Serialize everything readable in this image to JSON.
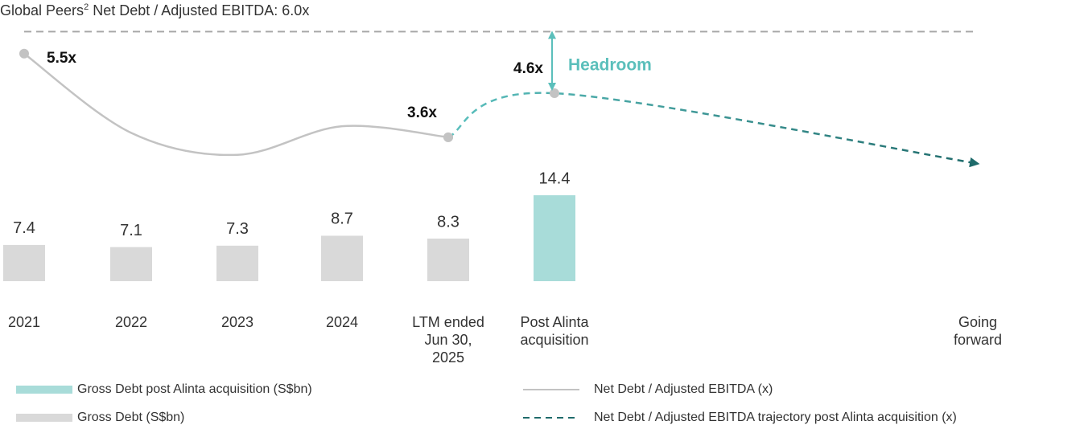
{
  "chart_data": {
    "type": "bar",
    "categories": [
      "2021",
      "2022",
      "2023",
      "2024",
      "LTM ended Jun 30, 2025",
      "Post Alinta acquisition",
      "Going forward"
    ],
    "ylim": [
      2.3,
      35
    ],
    "y2lim": [
      0,
      6.5
    ],
    "series": [
      {
        "name": "Gross Debt (S$bn)",
        "type": "bar",
        "color": "#d9d9d9",
        "values": [
          7.4,
          7.1,
          7.3,
          8.7,
          8.3,
          null,
          null
        ]
      },
      {
        "name": "Gross Debt post Alinta acquisition (S$bn)",
        "type": "bar",
        "color": "#a8dcd9",
        "values": [
          null,
          null,
          null,
          null,
          null,
          14.4,
          null
        ]
      },
      {
        "name": "Net Debt / Adjusted EBITDA (x)",
        "type": "line",
        "axis": "y2",
        "color": "#c3c3c3",
        "style": "solid",
        "values": [
          5.5,
          3.7,
          3.2,
          3.85,
          3.6,
          null,
          null
        ],
        "value_labels": [
          "5.5x",
          null,
          null,
          null,
          "3.6x",
          null,
          null
        ]
      },
      {
        "name": "Net Debt / Adjusted EBITDA trajectory post Alinta acquisition (x)",
        "type": "line",
        "axis": "y2",
        "color": "#5bc0be",
        "color_end": "#1f6b6b",
        "style": "dashed",
        "values": [
          null,
          null,
          null,
          null,
          3.6,
          4.6,
          3.0
        ],
        "value_labels": [
          null,
          null,
          null,
          null,
          null,
          "4.6x",
          null
        ]
      }
    ],
    "reference_line": {
      "value": 6.0,
      "label": "Global Peers",
      "label_superscript": "2",
      "label_rest": " Net Debt / Adjusted EBITDA: 6.0x",
      "color": "#a6a6a6"
    },
    "annotation": {
      "text": "Headroom",
      "color": "#5bbfbb",
      "from": 6.0,
      "to": 4.6,
      "category": 5
    }
  }
}
